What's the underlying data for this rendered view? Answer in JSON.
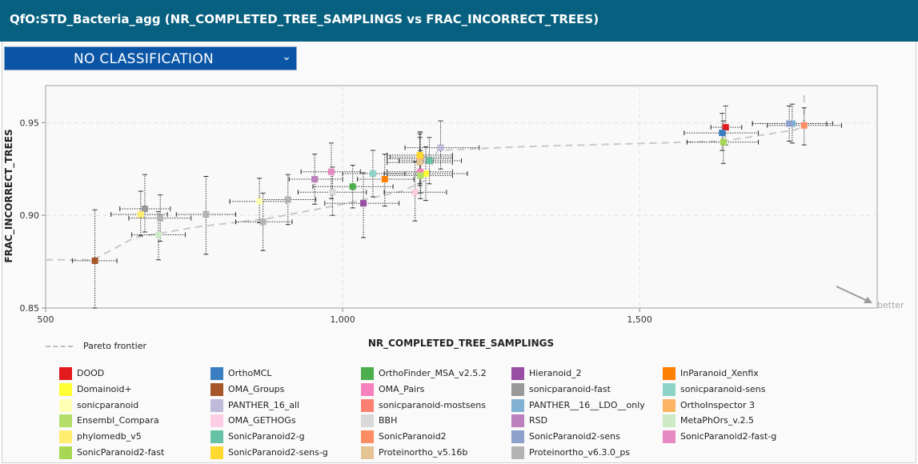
{
  "header": {
    "title": "QfO:STD_Bacteria_agg (NR_COMPLETED_TREE_SAMPLINGS vs FRAC_INCORRECT_TREES)"
  },
  "classification": {
    "selected": "NO CLASSIFICATION",
    "icon": "chevron-down-icon"
  },
  "pareto_label": "Pareto frontier",
  "better_label": "better",
  "chart_data": {
    "type": "scatter",
    "xlabel": "NR_COMPLETED_TREE_SAMPLINGS",
    "ylabel": "FRAC_INCORRECT_TREES",
    "xlim": [
      500,
      1900
    ],
    "ylim": [
      0.85,
      0.97
    ],
    "xticks": [
      500,
      1000,
      1500
    ],
    "xtick_labels": [
      "500",
      "1,000",
      "1,500"
    ],
    "yticks": [
      0.85,
      0.9,
      0.95
    ],
    "ytick_labels": [
      "0.85",
      "0.90",
      "0.95"
    ],
    "grid": true,
    "legend_position": "bottom",
    "pareto_frontier": [
      [
        500,
        0.876
      ],
      [
        580,
        0.876
      ],
      [
        650,
        0.888
      ],
      [
        760,
        0.894
      ],
      [
        870,
        0.898
      ],
      [
        1000,
        0.906
      ],
      [
        1100,
        0.913
      ],
      [
        1140,
        0.919
      ],
      [
        1160,
        0.935
      ],
      [
        1300,
        0.937
      ],
      [
        1640,
        0.94
      ],
      [
        1760,
        0.946
      ],
      [
        1777,
        0.948
      ],
      [
        1777,
        0.967
      ]
    ],
    "series": [
      {
        "name": "DOOD",
        "color": "#e31a1c",
        "x": 1645,
        "y": 0.9475,
        "xerr": [
          1620,
          1672
        ],
        "yerr": [
          0.938,
          0.959
        ]
      },
      {
        "name": "OrthoMCL",
        "color": "#3a7dc1",
        "x": 1639,
        "y": 0.9445,
        "xerr": [
          1575,
          1700
        ],
        "yerr": [
          0.935,
          0.955
        ]
      },
      {
        "name": "OrthoFinder_MSA_v2.5.2",
        "color": "#4cae4c",
        "x": 1017,
        "y": 0.9155,
        "xerr": [
          950,
          1085
        ],
        "yerr": [
          0.904,
          0.927
        ]
      },
      {
        "name": "Hieranoid_2",
        "color": "#984ea3",
        "x": 1035,
        "y": 0.9065,
        "xerr": [
          970,
          1095
        ],
        "yerr": [
          0.888,
          0.923
        ]
      },
      {
        "name": "InParanoid_Xenfix",
        "color": "#ff7f00",
        "x": 1071,
        "y": 0.9195,
        "xerr": [
          1025,
          1120
        ],
        "yerr": [
          0.905,
          0.933
        ]
      },
      {
        "name": "Domainoid+",
        "color": "#ffff33",
        "x": 1140,
        "y": 0.9225,
        "xerr": [
          1070,
          1210
        ],
        "yerr": [
          0.908,
          0.937
        ]
      },
      {
        "name": "OMA_Groups",
        "color": "#a65628",
        "x": 583,
        "y": 0.8755,
        "xerr": [
          545,
          620
        ],
        "yerr": [
          0.85,
          0.903
        ]
      },
      {
        "name": "OMA_Pairs",
        "color": "#f781bf",
        "x": 1131,
        "y": 0.9235,
        "xerr": [
          1075,
          1185
        ],
        "yerr": [
          0.912,
          0.934
        ]
      },
      {
        "name": "sonicparanoid-fast",
        "color": "#999999",
        "x": 667,
        "y": 0.9035,
        "xerr": [
          625,
          710
        ],
        "yerr": [
          0.891,
          0.922
        ]
      },
      {
        "name": "sonicparanoid-sens",
        "color": "#8dd3c7",
        "x": 1051,
        "y": 0.9225,
        "xerr": [
          1000,
          1105
        ],
        "yerr": [
          0.91,
          0.935
        ]
      },
      {
        "name": "sonicparanoid",
        "color": "#ffffb3",
        "x": 860,
        "y": 0.9075,
        "xerr": [
          810,
          905
        ],
        "yerr": [
          0.896,
          0.92
        ]
      },
      {
        "name": "PANTHER_16_all",
        "color": "#bebada",
        "x": 1165,
        "y": 0.9365,
        "xerr": [
          1105,
          1230
        ],
        "yerr": [
          0.925,
          0.951
        ]
      },
      {
        "name": "sonicparanoid-mostsens",
        "color": "#fb8072",
        "x": 1130,
        "y": 0.9305,
        "xerr": [
          1075,
          1185
        ],
        "yerr": [
          0.917,
          0.944
        ]
      },
      {
        "name": "PANTHER__16__LDO__only",
        "color": "#80b1d3",
        "x": 1757,
        "y": 0.9495,
        "xerr": [
          1690,
          1825
        ],
        "yerr": [
          0.939,
          0.96
        ]
      },
      {
        "name": "OrthoInspector 3",
        "color": "#fdb462",
        "x": 1131,
        "y": 0.9315,
        "xerr": [
          1080,
          1185
        ],
        "yerr": [
          0.92,
          0.945
        ]
      },
      {
        "name": "Ensembl_Compara",
        "color": "#b3de69",
        "x": 1131,
        "y": 0.9215,
        "xerr": [
          1075,
          1185
        ],
        "yerr": [
          0.909,
          0.935
        ]
      },
      {
        "name": "OMA_GETHOGs",
        "color": "#fccde5",
        "x": 1122,
        "y": 0.9125,
        "xerr": [
          1070,
          1175
        ],
        "yerr": [
          0.897,
          0.929
        ]
      },
      {
        "name": "BBH",
        "color": "#d9d9d9",
        "x": 983,
        "y": 0.9125,
        "xerr": [
          925,
          1040
        ],
        "yerr": [
          0.9,
          0.926
        ]
      },
      {
        "name": "RSD",
        "color": "#bc80bd",
        "x": 953,
        "y": 0.9195,
        "xerr": [
          910,
          1000
        ],
        "yerr": [
          0.906,
          0.933
        ]
      },
      {
        "name": "MetaPhOrs_v.2.5",
        "color": "#ccebc5",
        "x": 690,
        "y": 0.8895,
        "xerr": [
          645,
          735
        ],
        "yerr": [
          0.876,
          0.902
        ]
      },
      {
        "name": "phylomedb_v5",
        "color": "#ffed6f",
        "x": 660,
        "y": 0.9005,
        "xerr": [
          610,
          705
        ],
        "yerr": [
          0.889,
          0.913
        ]
      },
      {
        "name": "SonicParanoid2-g",
        "color": "#66c2a5",
        "x": 1146,
        "y": 0.9295,
        "xerr": [
          1095,
          1200
        ],
        "yerr": [
          0.917,
          0.942
        ]
      },
      {
        "name": "SonicParanoid2",
        "color": "#fc8d62",
        "x": 1777,
        "y": 0.9485,
        "xerr": [
          1715,
          1840
        ],
        "yerr": [
          0.938,
          0.958
        ]
      },
      {
        "name": "SonicParanoid2-sens",
        "color": "#8da0cb",
        "x": 1752,
        "y": 0.9495,
        "xerr": [
          1690,
          1815
        ],
        "yerr": [
          0.94,
          0.959
        ]
      },
      {
        "name": "SonicParanoid2-fast-g",
        "color": "#e78ac3",
        "x": 981,
        "y": 0.9235,
        "xerr": [
          930,
          1030
        ],
        "yerr": [
          0.909,
          0.939
        ]
      },
      {
        "name": "SonicParanoid2-fast",
        "color": "#a6d854",
        "x": 1641,
        "y": 0.9395,
        "xerr": [
          1580,
          1700
        ],
        "yerr": [
          0.928,
          0.951
        ]
      },
      {
        "name": "SonicParanoid2-sens-g",
        "color": "#ffd92f",
        "x": 1130,
        "y": 0.9325,
        "xerr": [
          1075,
          1185
        ],
        "yerr": [
          0.92,
          0.945
        ]
      },
      {
        "name": "Proteinortho_v5.16b",
        "color": "#e5c494",
        "x": 1130,
        "y": 0.9285,
        "xerr": [
          1075,
          1185
        ],
        "yerr": [
          0.916,
          0.942
        ]
      },
      {
        "name": "Proteinortho_v6.3.0_ps",
        "color": "#b3b3b3",
        "x": 770,
        "y": 0.9005,
        "xerr": [
          720,
          820
        ],
        "yerr": [
          0.879,
          0.921
        ]
      },
      {
        "name": "Proteinortho_v6.3.0_ps",
        "color": "#b3b3b3",
        "x": 693,
        "y": 0.8985,
        "xerr": [
          640,
          745
        ],
        "yerr": [
          0.886,
          0.911
        ]
      },
      {
        "name": "Proteinortho_v6.3.0_ps",
        "color": "#b3b3b3",
        "x": 908,
        "y": 0.9085,
        "xerr": [
          860,
          955
        ],
        "yerr": [
          0.895,
          0.922
        ]
      },
      {
        "name": "Proteinortho_v6.3.0_ps",
        "color": "#b3b3b3",
        "x": 866,
        "y": 0.8965,
        "xerr": [
          820,
          915
        ],
        "yerr": [
          0.881,
          0.912
        ]
      }
    ]
  },
  "legend_items": [
    {
      "name": "DOOD",
      "color": "#e31a1c"
    },
    {
      "name": "OrthoMCL",
      "color": "#3a7dc1"
    },
    {
      "name": "OrthoFinder_MSA_v2.5.2",
      "color": "#4cae4c"
    },
    {
      "name": "Hieranoid_2",
      "color": "#984ea3"
    },
    {
      "name": "InParanoid_Xenfix",
      "color": "#ff7f00"
    },
    {
      "name": "Domainoid+",
      "color": "#ffff33"
    },
    {
      "name": "OMA_Groups",
      "color": "#a65628"
    },
    {
      "name": "OMA_Pairs",
      "color": "#f781bf"
    },
    {
      "name": "sonicparanoid-fast",
      "color": "#999999"
    },
    {
      "name": "sonicparanoid-sens",
      "color": "#8dd3c7"
    },
    {
      "name": "sonicparanoid",
      "color": "#ffffb3"
    },
    {
      "name": "PANTHER_16_all",
      "color": "#bebada"
    },
    {
      "name": "sonicparanoid-mostsens",
      "color": "#fb8072"
    },
    {
      "name": "PANTHER__16__LDO__only",
      "color": "#80b1d3"
    },
    {
      "name": "OrthoInspector 3",
      "color": "#fdb462"
    },
    {
      "name": "Ensembl_Compara",
      "color": "#b3de69"
    },
    {
      "name": "OMA_GETHOGs",
      "color": "#fccde5"
    },
    {
      "name": "BBH",
      "color": "#d9d9d9"
    },
    {
      "name": "RSD",
      "color": "#bc80bd"
    },
    {
      "name": "MetaPhOrs_v.2.5",
      "color": "#ccebc5"
    },
    {
      "name": "phylomedb_v5",
      "color": "#ffed6f"
    },
    {
      "name": "SonicParanoid2-g",
      "color": "#66c2a5"
    },
    {
      "name": "SonicParanoid2",
      "color": "#fc8d62"
    },
    {
      "name": "SonicParanoid2-sens",
      "color": "#8da0cb"
    },
    {
      "name": "SonicParanoid2-fast-g",
      "color": "#e78ac3"
    },
    {
      "name": "SonicParanoid2-fast",
      "color": "#a6d854"
    },
    {
      "name": "SonicParanoid2-sens-g",
      "color": "#ffd92f"
    },
    {
      "name": "Proteinortho_v5.16b",
      "color": "#e5c494"
    },
    {
      "name": "Proteinortho_v6.3.0_ps",
      "color": "#b3b3b3"
    }
  ]
}
